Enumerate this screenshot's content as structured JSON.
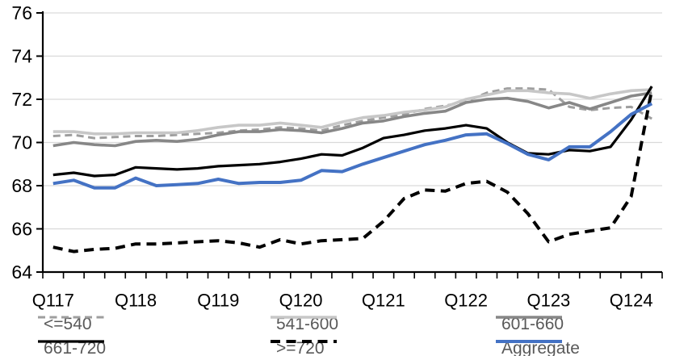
{
  "chart_data": {
    "type": "line",
    "title": "",
    "x_axis": {
      "quarters": [
        "2017Q1",
        "2017Q2",
        "2017Q3",
        "2017Q4",
        "2018Q1",
        "2018Q2",
        "2018Q3",
        "2018Q4",
        "2019Q1",
        "2019Q2",
        "2019Q3",
        "2019Q4",
        "2020Q1",
        "2020Q2",
        "2020Q3",
        "2020Q4",
        "2021Q1",
        "2021Q2",
        "2021Q3",
        "2021Q4",
        "2022Q1",
        "2022Q2",
        "2022Q3",
        "2022Q4",
        "2023Q1",
        "2023Q2",
        "2023Q3",
        "2023Q4",
        "2024Q1",
        "2024Q2"
      ],
      "tick_labels": [
        {
          "label": "Q117",
          "index": 0
        },
        {
          "label": "Q118",
          "index": 4
        },
        {
          "label": "Q119",
          "index": 8
        },
        {
          "label": "Q120",
          "index": 12
        },
        {
          "label": "Q121",
          "index": 16
        },
        {
          "label": "Q122",
          "index": 20
        },
        {
          "label": "Q123",
          "index": 24
        },
        {
          "label": "Q124",
          "index": 28
        }
      ]
    },
    "y_axis": {
      "min": 64,
      "max": 76,
      "step": 2,
      "tick_labels": [
        "64",
        "66",
        "68",
        "70",
        "72",
        "74",
        "76"
      ],
      "gridlines": true
    },
    "series": [
      {
        "name": "<=540",
        "color": "#9e9e9e",
        "style": "dashed",
        "values": [
          70.3,
          70.35,
          70.2,
          70.25,
          70.3,
          70.3,
          70.35,
          70.4,
          70.45,
          70.55,
          70.6,
          70.7,
          70.65,
          70.55,
          70.8,
          71.0,
          71.15,
          71.3,
          71.55,
          71.7,
          71.9,
          72.3,
          72.5,
          72.5,
          72.45,
          71.65,
          71.5,
          71.6,
          71.65,
          71.1
        ]
      },
      {
        "name": "541-600",
        "color": "#c7c7c7",
        "style": "solid",
        "values": [
          70.5,
          70.5,
          70.4,
          70.4,
          70.45,
          70.45,
          70.45,
          70.55,
          70.7,
          70.8,
          70.8,
          70.9,
          70.8,
          70.7,
          70.95,
          71.15,
          71.25,
          71.4,
          71.5,
          71.65,
          72.0,
          72.2,
          72.4,
          72.4,
          72.3,
          72.25,
          72.05,
          72.25,
          72.4,
          72.45
        ]
      },
      {
        "name": "601-660",
        "color": "#878787",
        "style": "solid",
        "values": [
          69.85,
          70.0,
          69.9,
          69.85,
          70.05,
          70.1,
          70.05,
          70.15,
          70.35,
          70.5,
          70.5,
          70.6,
          70.55,
          70.45,
          70.65,
          70.9,
          71.0,
          71.2,
          71.35,
          71.45,
          71.85,
          72.0,
          72.05,
          71.9,
          71.6,
          71.85,
          71.55,
          71.85,
          72.15,
          72.3
        ]
      },
      {
        "name": "661-720",
        "color": "#000000",
        "style": "solid",
        "values": [
          68.5,
          68.6,
          68.45,
          68.5,
          68.85,
          68.8,
          68.75,
          68.8,
          68.9,
          68.95,
          69.0,
          69.1,
          69.25,
          69.45,
          69.4,
          69.75,
          70.2,
          70.35,
          70.55,
          70.65,
          70.8,
          70.65,
          70.0,
          69.5,
          69.45,
          69.65,
          69.6,
          69.8,
          71.05,
          72.6
        ]
      },
      {
        "name": ">=720",
        "color": "#000000",
        "style": "dashed",
        "values": [
          65.15,
          64.95,
          65.05,
          65.1,
          65.3,
          65.3,
          65.35,
          65.4,
          65.45,
          65.35,
          65.15,
          65.5,
          65.3,
          65.45,
          65.5,
          65.55,
          66.35,
          67.4,
          67.8,
          67.75,
          68.1,
          68.2,
          67.7,
          66.7,
          65.4,
          65.75,
          65.9,
          66.05,
          67.5,
          72.45
        ]
      },
      {
        "name": "Aggregate",
        "color": "#4472c4",
        "style": "solid",
        "values": [
          68.1,
          68.25,
          67.9,
          67.9,
          68.35,
          68.0,
          68.05,
          68.1,
          68.3,
          68.1,
          68.15,
          68.15,
          68.25,
          68.7,
          68.65,
          69.0,
          69.3,
          69.6,
          69.9,
          70.1,
          70.35,
          70.4,
          69.95,
          69.45,
          69.2,
          69.8,
          69.8,
          70.5,
          71.3,
          71.8
        ]
      }
    ],
    "legend": {
      "position": "bottom",
      "rows": [
        [
          0,
          1,
          2
        ],
        [
          3,
          4,
          5
        ]
      ]
    },
    "colors": {
      "gridline": "#d9d9d9",
      "axis": "#000000",
      "legend_text": "#595959",
      "axis_text": "#000000"
    }
  }
}
